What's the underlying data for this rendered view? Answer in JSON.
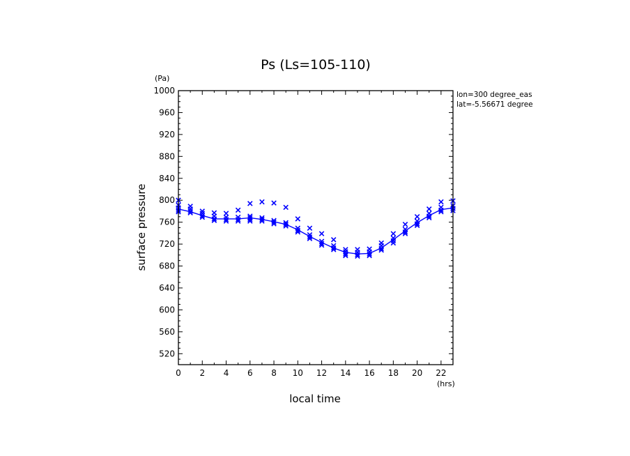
{
  "chart_data": {
    "type": "scatter",
    "title": "Ps (Ls=105-110)",
    "xlabel": "local time",
    "ylabel": "surface pressure",
    "x_unit": "(hrs)",
    "y_unit": "(Pa)",
    "xlim": [
      0,
      23
    ],
    "ylim": [
      500,
      1000
    ],
    "x_ticks": [
      "0",
      "2",
      "4",
      "6",
      "8",
      "10",
      "12",
      "14",
      "16",
      "18",
      "20",
      "22"
    ],
    "y_ticks": [
      "520",
      "560",
      "600",
      "640",
      "680",
      "720",
      "760",
      "800",
      "840",
      "880",
      "920",
      "960",
      "1000"
    ],
    "annotations": [
      "lon=300 degree_eas",
      "lat=-5.56671 degree"
    ],
    "color": "#0000ff",
    "series": [
      {
        "mark": "line",
        "x": [
          0,
          1,
          2,
          3,
          4,
          5,
          6,
          7,
          8,
          9,
          10,
          11,
          12,
          13,
          14,
          15,
          16,
          17,
          18,
          19,
          20,
          21,
          22,
          23
        ],
        "y": [
          784,
          779,
          772,
          766,
          766,
          766,
          768,
          765,
          761,
          756,
          746,
          734,
          723,
          713,
          705,
          702,
          703,
          713,
          728,
          744,
          759,
          772,
          783,
          786
        ]
      },
      {
        "mark": "x",
        "points": [
          [
            0,
            800
          ],
          [
            0,
            791
          ],
          [
            0,
            786
          ],
          [
            0,
            782
          ],
          [
            0,
            779
          ],
          [
            1,
            789
          ],
          [
            1,
            784
          ],
          [
            1,
            780
          ],
          [
            1,
            777
          ],
          [
            2,
            780
          ],
          [
            2,
            776
          ],
          [
            2,
            772
          ],
          [
            2,
            769
          ],
          [
            3,
            777
          ],
          [
            3,
            771
          ],
          [
            3,
            766
          ],
          [
            3,
            763
          ],
          [
            4,
            776
          ],
          [
            4,
            769
          ],
          [
            4,
            765
          ],
          [
            4,
            762
          ],
          [
            5,
            782
          ],
          [
            5,
            769
          ],
          [
            5,
            765
          ],
          [
            5,
            762
          ],
          [
            6,
            794
          ],
          [
            6,
            771
          ],
          [
            6,
            768
          ],
          [
            6,
            765
          ],
          [
            6,
            762
          ],
          [
            7,
            797
          ],
          [
            7,
            768
          ],
          [
            7,
            765
          ],
          [
            7,
            762
          ],
          [
            8,
            795
          ],
          [
            8,
            763
          ],
          [
            8,
            760
          ],
          [
            8,
            757
          ],
          [
            9,
            787
          ],
          [
            9,
            759
          ],
          [
            9,
            756
          ],
          [
            9,
            753
          ],
          [
            10,
            766
          ],
          [
            10,
            749
          ],
          [
            10,
            745
          ],
          [
            10,
            742
          ],
          [
            11,
            749
          ],
          [
            11,
            737
          ],
          [
            11,
            733
          ],
          [
            11,
            730
          ],
          [
            12,
            739
          ],
          [
            12,
            725
          ],
          [
            12,
            721
          ],
          [
            12,
            718
          ],
          [
            13,
            728
          ],
          [
            13,
            717
          ],
          [
            13,
            713
          ],
          [
            13,
            710
          ],
          [
            14,
            710
          ],
          [
            14,
            706
          ],
          [
            14,
            702
          ],
          [
            14,
            699
          ],
          [
            15,
            710
          ],
          [
            15,
            705
          ],
          [
            15,
            701
          ],
          [
            15,
            698
          ],
          [
            16,
            711
          ],
          [
            16,
            706
          ],
          [
            16,
            702
          ],
          [
            16,
            699
          ],
          [
            17,
            722
          ],
          [
            17,
            717
          ],
          [
            17,
            712
          ],
          [
            17,
            709
          ],
          [
            18,
            739
          ],
          [
            18,
            731
          ],
          [
            18,
            726
          ],
          [
            18,
            722
          ],
          [
            19,
            756
          ],
          [
            19,
            747
          ],
          [
            19,
            742
          ],
          [
            19,
            739
          ],
          [
            20,
            770
          ],
          [
            20,
            762
          ],
          [
            20,
            757
          ],
          [
            20,
            754
          ],
          [
            21,
            784
          ],
          [
            21,
            776
          ],
          [
            21,
            771
          ],
          [
            21,
            768
          ],
          [
            22,
            797
          ],
          [
            22,
            787
          ],
          [
            22,
            782
          ],
          [
            22,
            779
          ],
          [
            23,
            799
          ],
          [
            23,
            790
          ],
          [
            23,
            785
          ],
          [
            23,
            781
          ]
        ]
      }
    ]
  }
}
